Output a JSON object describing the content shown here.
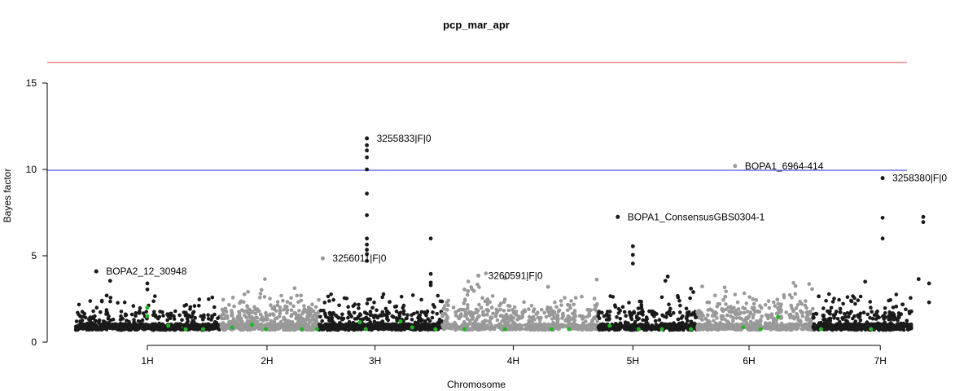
{
  "chart_data": {
    "type": "scatter",
    "title": "pcp_mar_apr",
    "xlabel": "Chromosome",
    "ylabel": "Bayes factor",
    "ylim": [
      0,
      15
    ],
    "yticks": [
      0,
      5,
      10,
      15
    ],
    "xlim": [
      0,
      7.5
    ],
    "x_ticks": [
      {
        "pos": 0.82,
        "label": "1H"
      },
      {
        "pos": 1.85,
        "label": "2H"
      },
      {
        "pos": 2.78,
        "label": "3H"
      },
      {
        "pos": 3.97,
        "label": "4H"
      },
      {
        "pos": 5.0,
        "label": "5H"
      },
      {
        "pos": 6.0,
        "label": "6H"
      },
      {
        "pos": 7.13,
        "label": "7H"
      }
    ],
    "chromosomes": [
      {
        "name": "1H",
        "start": 0.2,
        "end": 1.45,
        "color": "#1a1a1a"
      },
      {
        "name": "2H",
        "start": 1.45,
        "end": 2.3,
        "color": "#999999"
      },
      {
        "name": "3H",
        "start": 2.3,
        "end": 3.36,
        "color": "#1a1a1a"
      },
      {
        "name": "4H",
        "start": 3.36,
        "end": 4.7,
        "color": "#999999"
      },
      {
        "name": "5H",
        "start": 4.7,
        "end": 5.55,
        "color": "#1a1a1a"
      },
      {
        "name": "6H",
        "start": 5.55,
        "end": 6.55,
        "color": "#999999"
      },
      {
        "name": "7H",
        "start": 6.55,
        "end": 7.4,
        "color": "#1a1a1a"
      }
    ],
    "thresholds": [
      {
        "y": 16.2,
        "color": "#f08080"
      },
      {
        "y": 9.95,
        "color": "#6666ee"
      }
    ],
    "labeled_points": [
      {
        "label": "BOPA2_12_30948",
        "x": 0.38,
        "y": 4.1,
        "color": "#1a1a1a"
      },
      {
        "label": "3255833|F|0",
        "x": 2.71,
        "y": 11.8,
        "color": "#1a1a1a"
      },
      {
        "label": "3256011|F|0",
        "x": 2.33,
        "y": 4.85,
        "color": "#999999"
      },
      {
        "label": "3260591|F|0",
        "x": 3.67,
        "y": 3.85,
        "color": "#999999"
      },
      {
        "label": "BOPA1_ConsensusGBS0304-1",
        "x": 4.87,
        "y": 7.25,
        "color": "#1a1a1a"
      },
      {
        "label": "BOPA1_6964-414",
        "x": 5.88,
        "y": 10.2,
        "color": "#999999"
      },
      {
        "label": "3258380|F|0",
        "x": 7.15,
        "y": 9.5,
        "color": "#1a1a1a"
      }
    ],
    "notable_points": [
      {
        "x": 2.71,
        "y": 11.4
      },
      {
        "x": 2.71,
        "y": 11.1
      },
      {
        "x": 2.71,
        "y": 10.7
      },
      {
        "x": 2.71,
        "y": 10.0
      },
      {
        "x": 2.71,
        "y": 8.6
      },
      {
        "x": 2.71,
        "y": 7.35
      },
      {
        "x": 2.71,
        "y": 6.0
      },
      {
        "x": 2.71,
        "y": 5.65
      },
      {
        "x": 2.71,
        "y": 5.35
      },
      {
        "x": 2.71,
        "y": 5.1
      },
      {
        "x": 2.71,
        "y": 4.7
      },
      {
        "x": 3.26,
        "y": 6.0
      },
      {
        "x": 3.26,
        "y": 3.95
      },
      {
        "x": 5.0,
        "y": 5.55
      },
      {
        "x": 5.0,
        "y": 5.05
      },
      {
        "x": 5.0,
        "y": 4.55
      },
      {
        "x": 7.15,
        "y": 7.2
      },
      {
        "x": 7.15,
        "y": 6.0
      },
      {
        "x": 7.5,
        "y": 7.25
      },
      {
        "x": 7.5,
        "y": 6.95
      },
      {
        "x": 0.5,
        "y": 3.55
      },
      {
        "x": 0.47,
        "y": 2.7
      },
      {
        "x": 0.82,
        "y": 3.4
      },
      {
        "x": 0.82,
        "y": 3.05
      },
      {
        "x": 3.26,
        "y": 3.45
      },
      {
        "x": 3.26,
        "y": 3.3
      },
      {
        "x": 3.55,
        "y": 3.05
      },
      {
        "x": 3.58,
        "y": 2.95
      },
      {
        "x": 5.3,
        "y": 3.8
      },
      {
        "x": 5.28,
        "y": 3.55
      },
      {
        "x": 5.5,
        "y": 3.1
      },
      {
        "x": 6.4,
        "y": 3.25
      },
      {
        "x": 7.0,
        "y": 3.5
      },
      {
        "x": 7.55,
        "y": 3.4
      },
      {
        "x": 7.55,
        "y": 2.3
      },
      {
        "x": 7.46,
        "y": 3.65
      },
      {
        "x": 6.6,
        "y": 2.65
      },
      {
        "x": 5.52,
        "y": 2.9
      },
      {
        "x": 4.27,
        "y": 3.2
      },
      {
        "x": 3.9,
        "y": 3.7
      }
    ],
    "noise_counts": [
      620,
      560,
      640,
      640,
      460,
      540,
      520
    ],
    "noise_seed": 20240917,
    "green_points": [
      {
        "x": 0.82,
        "y": 2.0
      },
      {
        "x": 0.82,
        "y": 1.5
      },
      {
        "x": 1.0,
        "y": 0.95
      },
      {
        "x": 1.15,
        "y": 0.75
      },
      {
        "x": 1.3,
        "y": 0.75
      },
      {
        "x": 1.55,
        "y": 0.85
      },
      {
        "x": 1.72,
        "y": 1.0
      },
      {
        "x": 1.84,
        "y": 0.75
      },
      {
        "x": 2.15,
        "y": 0.75
      },
      {
        "x": 2.28,
        "y": 0.75
      },
      {
        "x": 2.65,
        "y": 1.15
      },
      {
        "x": 2.7,
        "y": 0.75
      },
      {
        "x": 3.0,
        "y": 1.2
      },
      {
        "x": 3.1,
        "y": 0.85
      },
      {
        "x": 3.3,
        "y": 0.75
      },
      {
        "x": 3.55,
        "y": 0.75
      },
      {
        "x": 3.9,
        "y": 0.75
      },
      {
        "x": 4.3,
        "y": 0.75
      },
      {
        "x": 4.45,
        "y": 0.75
      },
      {
        "x": 4.8,
        "y": 0.95
      },
      {
        "x": 5.05,
        "y": 0.75
      },
      {
        "x": 5.25,
        "y": 0.75
      },
      {
        "x": 5.5,
        "y": 0.75
      },
      {
        "x": 5.95,
        "y": 0.85
      },
      {
        "x": 6.1,
        "y": 0.75
      },
      {
        "x": 6.25,
        "y": 1.45
      },
      {
        "x": 6.62,
        "y": 0.75
      },
      {
        "x": 7.05,
        "y": 0.75
      }
    ]
  }
}
